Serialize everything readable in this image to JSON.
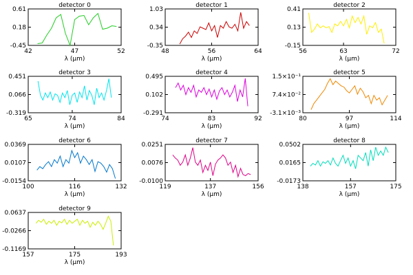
{
  "xlabel_prefix": "λ (",
  "xlabel_unit": "μm",
  "xlabel_suffix": ")",
  "chart_data": [
    {
      "type": "line",
      "title": "detector 0",
      "color": "#22cc22",
      "xlim": [
        42,
        52
      ],
      "ylim": [
        -0.45,
        0.61
      ],
      "xticks": [
        "42",
        "47",
        "52"
      ],
      "yticks": [
        "-0.45",
        "0.18",
        "0.61"
      ],
      "x": [
        43,
        43.5,
        44,
        44.5,
        45,
        45.5,
        46,
        46.5,
        47,
        47.5,
        48,
        48.5,
        49,
        49.5,
        50,
        50.5,
        51,
        51.5
      ],
      "y": [
        -0.4,
        -0.38,
        -0.15,
        0.05,
        0.35,
        0.45,
        -0.1,
        -0.45,
        0.3,
        0.4,
        0.42,
        0.15,
        0.35,
        0.48,
        0.02,
        0.05,
        0.12,
        0.1
      ]
    },
    {
      "type": "line",
      "title": "detector 1",
      "color": "#cc0000",
      "xlim": [
        48,
        64
      ],
      "ylim": [
        -0.35,
        1.03
      ],
      "xticks": [
        "48",
        "56",
        "64"
      ],
      "yticks": [
        "-0.35",
        "0.34",
        "1.03"
      ],
      "x": [
        50.5,
        51,
        51.5,
        52,
        52.5,
        53,
        53.5,
        54,
        54.5,
        55,
        55.5,
        56,
        56.5,
        57,
        57.5,
        58,
        58.5,
        59,
        59.5,
        60,
        60.5,
        61,
        61.5,
        62,
        62.5
      ],
      "y": [
        -0.3,
        -0.1,
        0.0,
        0.15,
        -0.05,
        0.2,
        0.1,
        0.35,
        0.3,
        0.25,
        0.5,
        0.2,
        0.4,
        -0.05,
        0.4,
        0.3,
        0.55,
        0.35,
        0.3,
        0.45,
        0.2,
        0.9,
        0.3,
        0.55,
        0.4
      ]
    },
    {
      "type": "line",
      "title": "detector 2",
      "color": "#ffee00",
      "xlim": [
        56,
        72
      ],
      "ylim": [
        -0.15,
        0.41
      ],
      "xticks": [
        "56",
        "63",
        "72"
      ],
      "yticks": [
        "-0.15",
        "0.13",
        "0.41"
      ],
      "x": [
        57,
        57.5,
        58,
        58.5,
        59,
        59.5,
        60,
        60.5,
        61,
        61.5,
        62,
        62.5,
        63,
        63.5,
        64,
        64.5,
        65,
        65.5,
        66,
        66.5,
        67,
        67.5,
        68,
        68.5,
        69,
        69.5,
        70
      ],
      "y": [
        0.35,
        0.05,
        0.1,
        0.18,
        0.12,
        0.15,
        0.12,
        0.14,
        0.05,
        0.18,
        0.15,
        0.22,
        0.15,
        0.25,
        0.12,
        0.3,
        0.2,
        0.28,
        0.18,
        0.3,
        0.02,
        0.15,
        0.12,
        0.2,
        0.05,
        0.1,
        -0.12
      ]
    },
    {
      "type": "line",
      "title": "detector 3",
      "color": "#00e5ee",
      "xlim": [
        65,
        84
      ],
      "ylim": [
        -0.319,
        0.451
      ],
      "xticks": [
        "65",
        "74",
        "84"
      ],
      "yticks": [
        "-0.319",
        "0.066",
        "0.451"
      ],
      "x": [
        67,
        67.5,
        68,
        68.5,
        69,
        69.5,
        70,
        70.5,
        71,
        71.5,
        72,
        72.5,
        73,
        73.5,
        74,
        74.5,
        75,
        75.5,
        76,
        76.5,
        77,
        77.5,
        78,
        78.5,
        79,
        79.5,
        80,
        80.5,
        81,
        81.5,
        82
      ],
      "y": [
        0.35,
        0.05,
        -0.05,
        0.1,
        0.0,
        0.12,
        -0.05,
        0.08,
        0.05,
        -0.1,
        0.1,
        0.0,
        0.15,
        -0.15,
        0.05,
        0.1,
        -0.1,
        0.12,
        0.0,
        0.25,
        -0.05,
        0.15,
        0.05,
        -0.15,
        0.2,
        0.0,
        0.1,
        -0.05,
        0.15,
        0.4,
        0.0
      ]
    },
    {
      "type": "line",
      "title": "detector 4",
      "color": "#dd00dd",
      "xlim": [
        74,
        92
      ],
      "ylim": [
        -0.291,
        0.495
      ],
      "xticks": [
        "74",
        "83",
        "92"
      ],
      "yticks": [
        "-0.291",
        "0.102",
        "0.495"
      ],
      "x": [
        76,
        76.5,
        77,
        77.5,
        78,
        78.5,
        79,
        79.5,
        80,
        80.5,
        81,
        81.5,
        82,
        82.5,
        83,
        83.5,
        84,
        84.5,
        85,
        85.5,
        86,
        86.5,
        87,
        87.5,
        88,
        88.5,
        89,
        89.5,
        90
      ],
      "y": [
        0.25,
        0.35,
        0.2,
        0.3,
        0.1,
        0.25,
        0.15,
        0.3,
        0.05,
        0.2,
        0.15,
        0.25,
        0.1,
        0.22,
        0.05,
        0.2,
        0.0,
        0.18,
        0.25,
        0.1,
        0.2,
        0.05,
        0.15,
        0.3,
        -0.05,
        0.2,
        0.05,
        0.45,
        -0.15
      ]
    },
    {
      "type": "line",
      "title": "detector 5",
      "color": "#ee8800",
      "xlim": [
        80,
        114
      ],
      "ylim": [
        -0.0031,
        0.15
      ],
      "xticks": [
        "80",
        "97",
        "114"
      ],
      "yticks": [
        "-3.1×10⁻³",
        "7.4×10⁻²",
        "1.5×10⁻¹"
      ],
      "x": [
        83,
        84,
        85,
        86,
        87,
        88,
        89,
        90,
        91,
        92,
        93,
        94,
        95,
        96,
        97,
        98,
        99,
        100,
        101,
        102,
        103,
        104,
        105,
        106,
        107,
        108,
        109,
        110,
        111
      ],
      "y": [
        0.01,
        0.035,
        0.05,
        0.065,
        0.08,
        0.095,
        0.12,
        0.14,
        0.115,
        0.13,
        0.12,
        0.11,
        0.105,
        0.09,
        0.08,
        0.095,
        0.11,
        0.075,
        0.1,
        0.085,
        0.06,
        0.07,
        0.035,
        0.07,
        0.05,
        0.06,
        0.03,
        0.05,
        0.07
      ]
    },
    {
      "type": "line",
      "title": "detector 6",
      "color": "#0077cc",
      "xlim": [
        100,
        132
      ],
      "ylim": [
        -0.0154,
        0.0369
      ],
      "xticks": [
        "100",
        "116",
        "132"
      ],
      "yticks": [
        "-0.0154",
        "0.0107",
        "0.0369"
      ],
      "x": [
        103,
        104,
        105,
        106,
        107,
        108,
        109,
        110,
        111,
        112,
        113,
        114,
        115,
        116,
        117,
        118,
        119,
        120,
        121,
        122,
        123,
        124,
        125,
        126,
        127,
        128,
        129,
        130
      ],
      "y": [
        0.0,
        0.005,
        0.002,
        0.008,
        0.012,
        0.005,
        0.015,
        0.01,
        0.02,
        0.005,
        0.015,
        0.01,
        0.028,
        0.018,
        0.025,
        0.01,
        0.02,
        0.015,
        0.008,
        0.015,
        -0.002,
        0.012,
        0.01,
        0.005,
        -0.003,
        0.008,
        0.002,
        -0.012
      ]
    },
    {
      "type": "line",
      "title": "detector 7",
      "color": "#dd0088",
      "xlim": [
        119,
        156
      ],
      "ylim": [
        -0.01,
        0.0251
      ],
      "xticks": [
        "119",
        "137",
        "156"
      ],
      "yticks": [
        "-0.0100",
        "0.0076",
        "0.0251"
      ],
      "x": [
        122,
        123,
        124,
        125,
        126,
        127,
        128,
        129,
        130,
        131,
        132,
        133,
        134,
        135,
        136,
        137,
        138,
        139,
        140,
        141,
        142,
        143,
        144,
        145,
        146,
        147,
        148,
        149,
        150,
        151,
        152,
        153
      ],
      "y": [
        0.015,
        0.012,
        0.01,
        0.005,
        0.008,
        0.015,
        0.005,
        0.012,
        0.022,
        0.008,
        0.005,
        0.01,
        -0.002,
        0.005,
        0.0,
        0.008,
        -0.005,
        0.006,
        0.01,
        0.012,
        0.015,
        0.012,
        0.005,
        0.008,
        -0.002,
        0.005,
        -0.006,
        0.002,
        -0.004,
        -0.005,
        -0.003,
        -0.004
      ]
    },
    {
      "type": "line",
      "title": "detector 8",
      "color": "#00ddbb",
      "xlim": [
        138,
        175
      ],
      "ylim": [
        -0.0173,
        0.0502
      ],
      "xticks": [
        "138",
        "157",
        "175"
      ],
      "yticks": [
        "-0.0173",
        "0.0165",
        "0.0502"
      ],
      "x": [
        141,
        142,
        143,
        144,
        145,
        146,
        147,
        148,
        149,
        150,
        151,
        152,
        153,
        154,
        155,
        156,
        157,
        158,
        159,
        160,
        161,
        162,
        163,
        164,
        165,
        166,
        167,
        168,
        169,
        170,
        171,
        172
      ],
      "y": [
        0.01,
        0.015,
        0.012,
        0.02,
        0.01,
        0.018,
        0.015,
        0.02,
        0.012,
        0.025,
        0.015,
        0.01,
        0.02,
        0.03,
        0.015,
        0.025,
        0.01,
        0.02,
        0.005,
        0.03,
        0.025,
        0.02,
        0.035,
        0.01,
        0.04,
        0.02,
        0.045,
        0.03,
        0.038,
        0.03,
        0.045,
        0.035
      ]
    },
    {
      "type": "line",
      "title": "detector 9",
      "color": "#ccee00",
      "xlim": [
        157,
        193
      ],
      "ylim": [
        -0.1169,
        0.0637
      ],
      "xticks": [
        "157",
        "175",
        "193"
      ],
      "yticks": [
        "-0.1169",
        "-0.0266",
        "0.0637"
      ],
      "x": [
        160,
        161,
        162,
        163,
        164,
        165,
        166,
        167,
        168,
        169,
        170,
        171,
        172,
        173,
        174,
        175,
        176,
        177,
        178,
        179,
        180,
        181,
        182,
        183,
        184,
        185,
        186,
        187,
        188,
        189,
        190
      ],
      "y": [
        0.01,
        0.025,
        0.015,
        0.03,
        0.005,
        0.02,
        0.01,
        0.025,
        0.0,
        0.02,
        0.012,
        0.03,
        0.005,
        0.025,
        0.01,
        0.02,
        0.03,
        0.0,
        0.025,
        0.01,
        0.02,
        -0.01,
        0.015,
        0.0,
        0.02,
        0.005,
        -0.02,
        0.01,
        0.045,
        0.02,
        -0.1
      ]
    }
  ]
}
